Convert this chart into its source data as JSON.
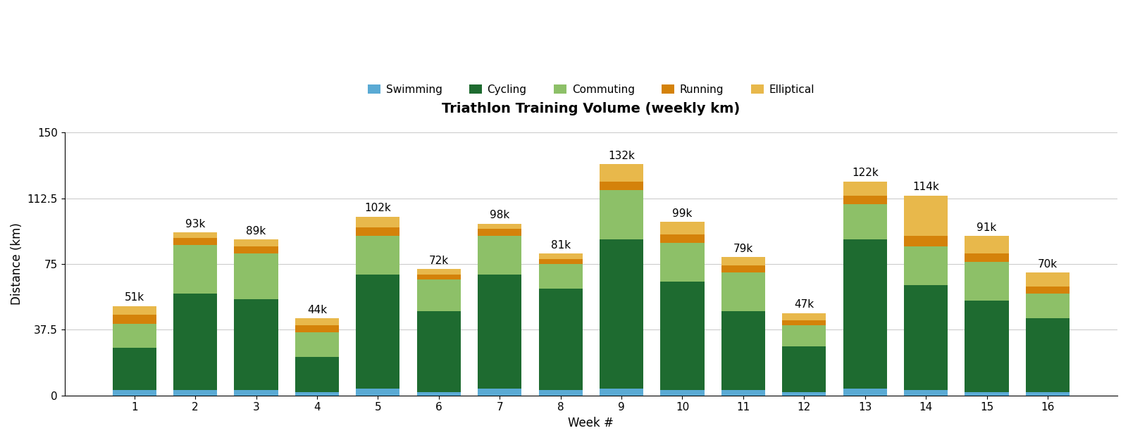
{
  "weeks": [
    1,
    2,
    3,
    4,
    5,
    6,
    7,
    8,
    9,
    10,
    11,
    12,
    13,
    14,
    15,
    16
  ],
  "totals": [
    51,
    93,
    89,
    44,
    102,
    72,
    98,
    81,
    132,
    99,
    79,
    47,
    122,
    114,
    91,
    70
  ],
  "swimming": [
    3,
    3,
    3,
    2,
    4,
    2,
    4,
    3,
    4,
    3,
    3,
    2,
    4,
    3,
    2,
    2
  ],
  "cycling": [
    24,
    55,
    52,
    20,
    65,
    46,
    65,
    58,
    85,
    62,
    45,
    26,
    85,
    60,
    52,
    42
  ],
  "commuting": [
    14,
    28,
    26,
    14,
    22,
    18,
    22,
    14,
    28,
    22,
    22,
    12,
    20,
    22,
    22,
    14
  ],
  "running": [
    5,
    4,
    4,
    4,
    5,
    3,
    4,
    3,
    5,
    5,
    4,
    3,
    5,
    6,
    5,
    4
  ],
  "elliptical_note": "remainder after swimming+cycling+commuting+running",
  "colors": {
    "swimming": "#5AAAD4",
    "cycling": "#1E6B30",
    "commuting": "#8DC068",
    "running": "#D4820A",
    "elliptical": "#E8B84B"
  },
  "title": "Triathlon Training Volume (weekly km)",
  "xlabel": "Week #",
  "ylabel": "Distance (km)",
  "ylim": [
    0,
    150
  ],
  "yticks": [
    0,
    37.5,
    75,
    112.5,
    150
  ],
  "ytick_labels": [
    "0",
    "37.5",
    "75",
    "112.5",
    "150"
  ],
  "background_color": "#ffffff",
  "grid_color": "#cccccc",
  "title_fontsize": 14,
  "label_fontsize": 12,
  "tick_fontsize": 11,
  "bar_width": 0.72,
  "annotation_fontsize": 11
}
